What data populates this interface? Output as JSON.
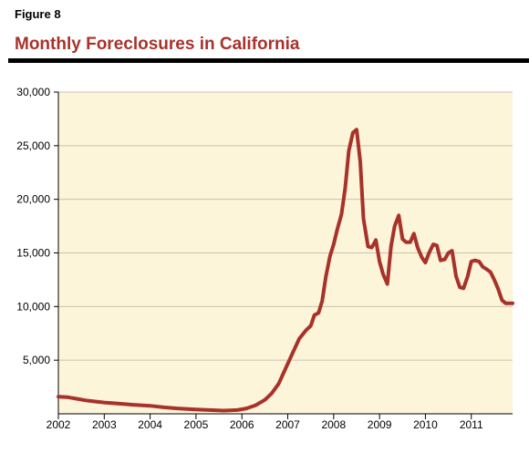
{
  "figure": {
    "label": "Figure 8",
    "title": "Monthly Foreclosures in California"
  },
  "colors": {
    "accent": "#A8322A",
    "plot_bg": "#FCF5DA",
    "grid": "#C9C3B2",
    "rule": "#000000"
  },
  "chart_data": {
    "type": "line",
    "title": "Monthly Foreclosures in California",
    "xlabel": "",
    "ylabel": "",
    "xlim": [
      2002,
      2011.9
    ],
    "ylim": [
      0,
      30000
    ],
    "grid": true,
    "y_ticks": [
      5000,
      10000,
      15000,
      20000,
      25000,
      30000
    ],
    "y_tick_labels": [
      "5,000",
      "10,000",
      "15,000",
      "20,000",
      "25,000",
      "30,000"
    ],
    "x_ticks": [
      2002,
      2003,
      2004,
      2005,
      2006,
      2007,
      2008,
      2009,
      2010,
      2011
    ],
    "x_tick_labels": [
      "2002",
      "2003",
      "2004",
      "2005",
      "2006",
      "2007",
      "2008",
      "2009",
      "2010",
      "2011"
    ],
    "series": [
      {
        "x": [
          2002.0,
          2002.2,
          2002.4,
          2002.6,
          2002.8,
          2003.0,
          2003.3,
          2003.6,
          2004.0,
          2004.3,
          2004.6,
          2005.0,
          2005.3,
          2005.6,
          2005.9,
          2006.1,
          2006.3,
          2006.5,
          2006.65,
          2006.8,
          2006.95,
          2007.1,
          2007.25,
          2007.4,
          2007.5,
          2007.58,
          2007.67,
          2007.75,
          2007.83,
          2007.92,
          2008.0,
          2008.08,
          2008.17,
          2008.25,
          2008.33,
          2008.42,
          2008.5,
          2008.58,
          2008.65,
          2008.75,
          2008.83,
          2008.92,
          2009.0,
          2009.08,
          2009.17,
          2009.25,
          2009.33,
          2009.42,
          2009.5,
          2009.58,
          2009.67,
          2009.75,
          2009.83,
          2009.92,
          2010.0,
          2010.08,
          2010.17,
          2010.25,
          2010.33,
          2010.42,
          2010.5,
          2010.58,
          2010.67,
          2010.75,
          2010.83,
          2010.92,
          2011.0,
          2011.08,
          2011.17,
          2011.25,
          2011.33,
          2011.42,
          2011.5,
          2011.58,
          2011.67,
          2011.75,
          2011.83,
          2011.9
        ],
        "y": [
          1600,
          1550,
          1400,
          1250,
          1150,
          1050,
          950,
          850,
          750,
          600,
          500,
          400,
          350,
          300,
          350,
          500,
          800,
          1300,
          1900,
          2800,
          4200,
          5600,
          7000,
          7800,
          8200,
          9200,
          9400,
          10500,
          12800,
          14700,
          15800,
          17200,
          18600,
          21000,
          24500,
          26200,
          26500,
          23500,
          18200,
          15600,
          15500,
          16200,
          14200,
          13000,
          12100,
          15600,
          17500,
          18500,
          16300,
          16000,
          16000,
          16800,
          15500,
          14600,
          14100,
          15000,
          15800,
          15700,
          14300,
          14400,
          15000,
          15200,
          12800,
          11800,
          11700,
          12800,
          14200,
          14300,
          14200,
          13700,
          13500,
          13200,
          12500,
          11700,
          10600,
          10300,
          10300,
          10300
        ]
      }
    ]
  }
}
